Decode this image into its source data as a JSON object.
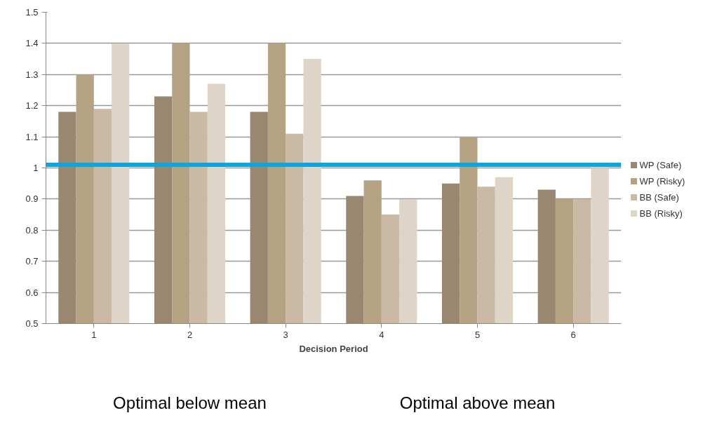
{
  "chart_data": {
    "type": "bar",
    "xlabel": "Decision Period",
    "categories": [
      "1",
      "2",
      "3",
      "4",
      "5",
      "6"
    ],
    "series": [
      {
        "name": "WP (Safe)",
        "color": "#998770",
        "values": [
          1.18,
          1.23,
          1.18,
          0.91,
          0.95,
          0.93
        ]
      },
      {
        "name": "WP (Risky)",
        "color": "#b4a283",
        "values": [
          1.3,
          1.4,
          1.4,
          0.96,
          1.1,
          0.9
        ]
      },
      {
        "name": "BB (Safe)",
        "color": "#cab9a4",
        "values": [
          1.19,
          1.18,
          1.11,
          0.85,
          0.94,
          0.9
        ]
      },
      {
        "name": "BB (Risky)",
        "color": "#ded4c7",
        "values": [
          1.4,
          1.27,
          1.35,
          0.9,
          0.97,
          1.0
        ]
      }
    ],
    "ylim": [
      0.5,
      1.5
    ],
    "yticks": [
      0.5,
      0.6,
      0.7,
      0.8,
      0.9,
      1,
      1.1,
      1.2,
      1.3,
      1.4,
      1.5
    ],
    "ref_lines": [
      {
        "axis": "y",
        "value": 1.01,
        "color": "#0ea5db"
      }
    ],
    "annotations": [
      "Optimal below mean",
      "Optimal above mean"
    ],
    "grid": "y",
    "legend": "right"
  }
}
